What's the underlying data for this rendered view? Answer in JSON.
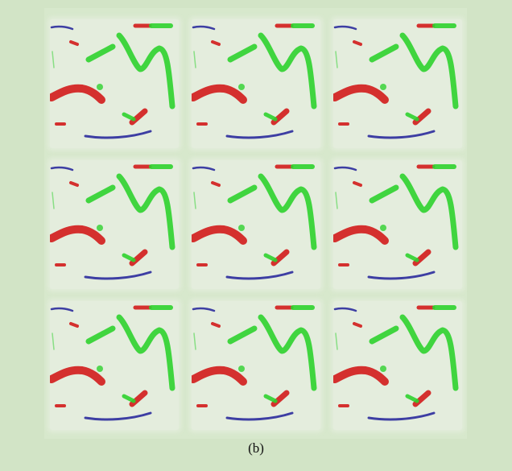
{
  "caption": "(b)",
  "grid": {
    "rows": 3,
    "cols": 3
  },
  "colors": {
    "page_background": "#d2e4c6",
    "tile_background": "#e4eddd",
    "red_strokes": "#d11b1b",
    "green_strokes": "#2ed12e",
    "blue_strokes": "#2a2a9c"
  }
}
